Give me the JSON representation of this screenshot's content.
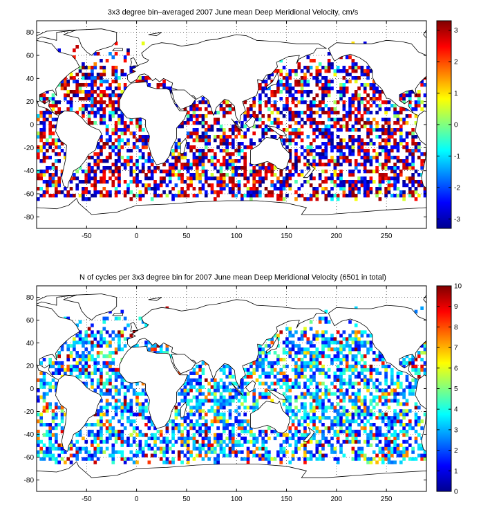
{
  "chart_data": [
    {
      "type": "heatmap",
      "title": "3x3 degree bin–averaged 2007 June mean Deep Meridional Velocity, cm/s",
      "xlabel": "",
      "ylabel": "",
      "x_ticks": [
        -50,
        0,
        50,
        100,
        150,
        200,
        250
      ],
      "y_ticks": [
        -80,
        -60,
        -40,
        -20,
        0,
        20,
        40,
        60,
        80
      ],
      "xlim": [
        -100,
        290
      ],
      "ylim": [
        -90,
        90
      ],
      "bin_size_deg": 3,
      "colormap": "jet",
      "grid": true,
      "colorbar": {
        "range": [
          -3.3,
          3.3
        ],
        "ticks": [
          -3,
          -2,
          -1,
          0,
          1,
          2,
          3
        ],
        "placement": "right"
      }
    },
    {
      "type": "heatmap",
      "title": "N of cycles per 3x3 degree bin for 2007 June mean Deep Meridional Velocity (6501 in total)",
      "xlabel": "",
      "ylabel": "",
      "x_ticks": [
        -50,
        0,
        50,
        100,
        150,
        200,
        250
      ],
      "y_ticks": [
        -80,
        -60,
        -40,
        -20,
        0,
        20,
        40,
        60,
        80
      ],
      "xlim": [
        -100,
        290
      ],
      "ylim": [
        -90,
        90
      ],
      "bin_size_deg": 3,
      "total_cycles": 6501,
      "colormap": "jet",
      "grid": true,
      "colorbar": {
        "range": [
          0,
          10
        ],
        "ticks": [
          0,
          1,
          2,
          3,
          4,
          5,
          6,
          7,
          8,
          9,
          10
        ],
        "placement": "right"
      }
    }
  ]
}
